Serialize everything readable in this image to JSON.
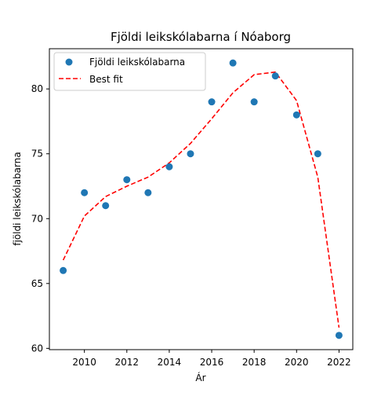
{
  "chart_data": {
    "type": "scatter",
    "title": "Fjöldi leikskólabarna í Nóaborg",
    "xlabel": "Ár",
    "ylabel": "fjöldi leikskólabarna",
    "xlim": [
      2008.35,
      2022.65
    ],
    "ylim": [
      59.9,
      83.1
    ],
    "xticks": [
      2010,
      2012,
      2014,
      2016,
      2018,
      2020,
      2022
    ],
    "yticks": [
      60,
      65,
      70,
      75,
      80
    ],
    "x": [
      2009,
      2010,
      2011,
      2012,
      2013,
      2014,
      2015,
      2016,
      2017,
      2018,
      2019,
      2020,
      2021,
      2022
    ],
    "series": [
      {
        "name": "Fjöldi leikskólabarna",
        "kind": "scatter",
        "color": "#1f77b4",
        "values": [
          66,
          72,
          71,
          73,
          72,
          74,
          75,
          79,
          82,
          79,
          81,
          78,
          75,
          61
        ]
      },
      {
        "name": "Best fit",
        "kind": "line",
        "style": "dashed",
        "color": "#ff0000",
        "values": [
          66.8,
          70.2,
          71.7,
          72.5,
          73.2,
          74.3,
          75.8,
          77.7,
          79.7,
          81.1,
          81.3,
          79.1,
          73.2,
          61.6
        ]
      }
    ],
    "legend_position": "top-left",
    "grid": false
  }
}
